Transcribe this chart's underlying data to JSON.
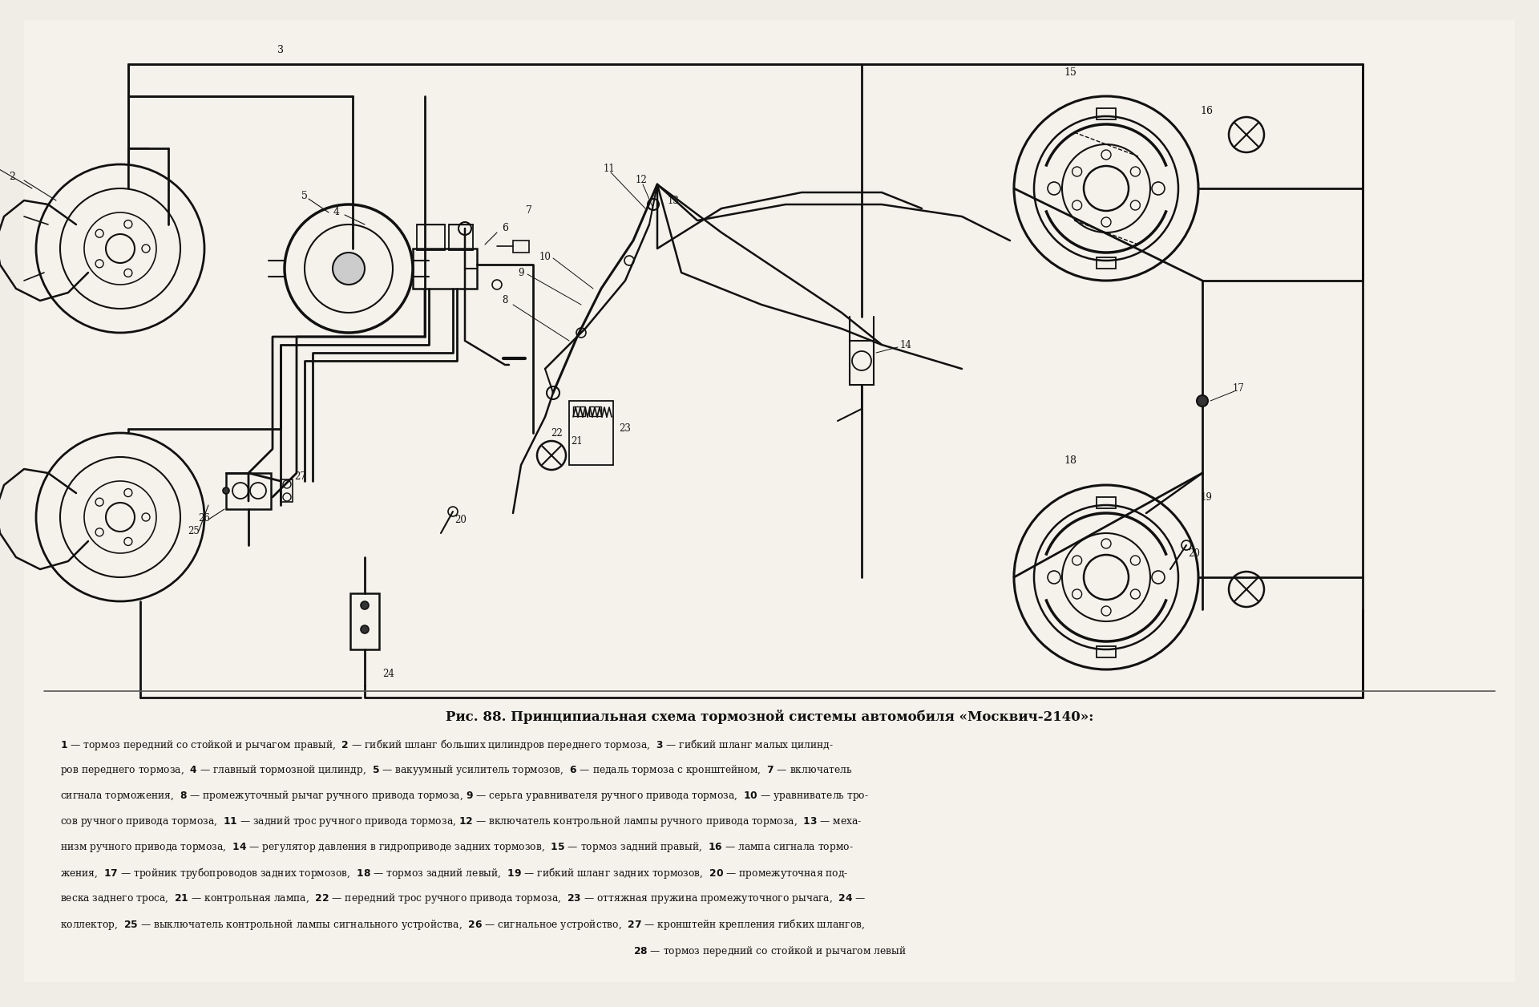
{
  "bg_color": "#f0ede6",
  "paper_color": "#f5f2eb",
  "line_color": "#111111",
  "title": "Рис. 88. Принципиальная схема тормозной системы автомобиля «Москвич-2140»:",
  "title_fontsize": 12,
  "caption_fontsize": 8.8,
  "caption_bold_parts": [
    "1",
    "2",
    "3",
    "4",
    "5",
    "6",
    "7",
    "8",
    "9",
    "10",
    "11",
    "12",
    "13",
    "14",
    "15",
    "16",
    "17",
    "18",
    "19",
    "20",
    "21",
    "22",
    "23",
    "24",
    "25",
    "26",
    "27",
    "28"
  ],
  "caption_lines": [
    "1 — тормоз  передний  со стойкой  и рычагом  правый,  2 — гибкий  шланг  больших цилинд-",
    "ров  переднего  тормоза,  4 — главный  тормозной  цилиндр,  5 — вакуумный  усилитель  тормозов,  6 — педаль  тормоза  с кронштейном,  7 — включатель",
    "сигнала  торможения,  8 — промежуточный  рычаг  ручного  привода  тормоза, 9 — серьга  уравнивателя  ручного  привода  тормоза,  10 — уравниватель  тро-",
    "сов  ручного  привода  тормоза,  11 — задний  трос  ручного  привода  тормоза, 12 — включатель  контрольной  лампы  ручного  привода  тормоза,  13 — меха-",
    "низм  ручного  привода  тормоза,  14 — регулятор  давления  в гидроприводе  задних  тормозов,  15 — тормоз  задний  правый,  16 — лампа  сигнала  тормо-",
    "жения,  17 — тройник  трубопроводов  задних  тормозов,  18 — тормоз  задний  левый,  19 — гибкий  шланг  задних  тормозов,  20 — промежуточная  под-",
    "веска  заднего  троса,  21 — контрольная  лампа,  22 — передний  трос  ручного  привода  тормоза,  23 — оттяжная  пружина  промежуточного  рычага,  24 —",
    "коллектор,  25 — выключатель  контрольной  лампы  сигнального  устройства,  26 — сигнальное  устройство,  27 — кронштейн  крепления  гибких  шлангов,",
    "28 — тормоз  передний  со стойкой  и рычагом  левый"
  ]
}
